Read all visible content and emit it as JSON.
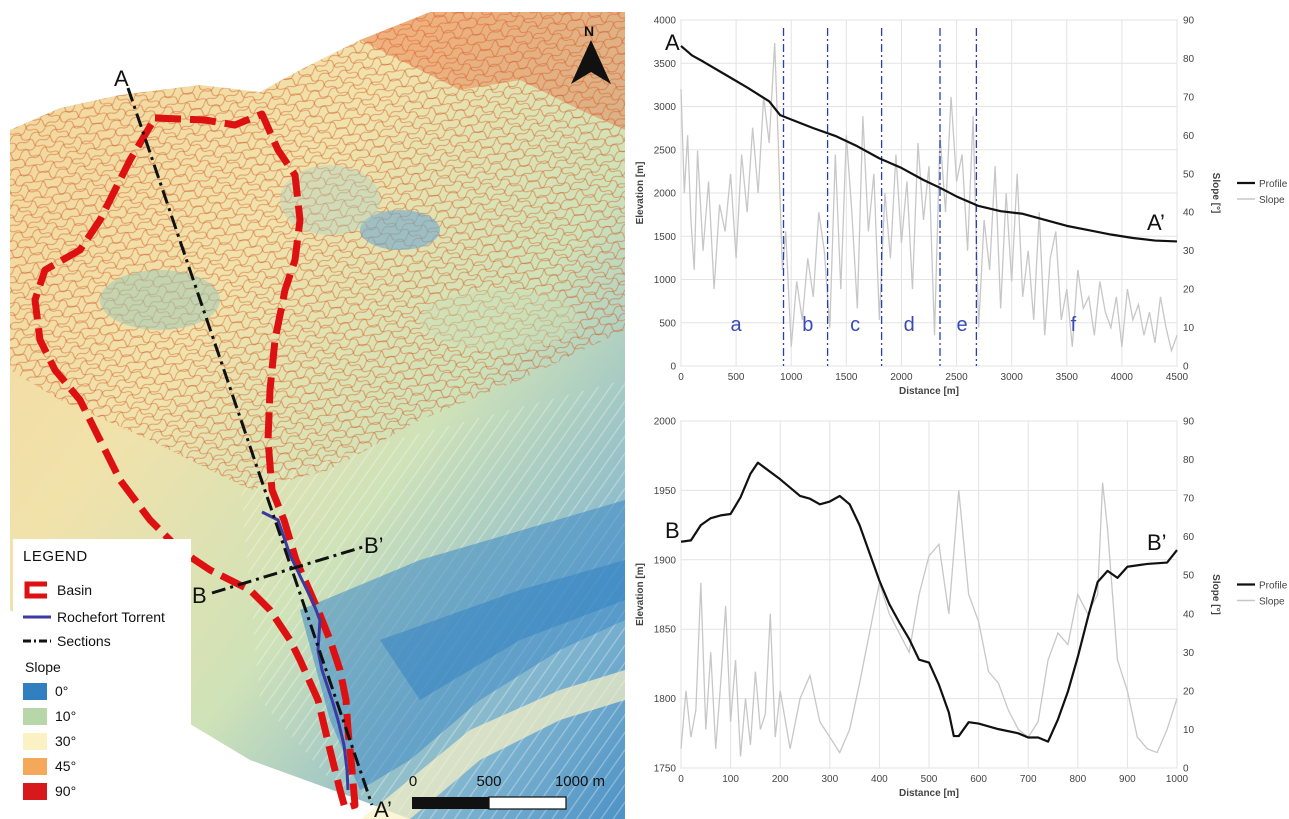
{
  "map": {
    "north_label": "N",
    "section_a_start": "A",
    "section_a_end": "A’",
    "section_b_start": "B",
    "section_b_end": "B’",
    "scale": {
      "labels": [
        "0",
        "500",
        "1000 m"
      ]
    },
    "colors": {
      "basin": "#dd1111",
      "torrent": "#3a3aa0",
      "sections": "#111111"
    }
  },
  "legend": {
    "title": "LEGEND",
    "items": [
      {
        "label": "Basin",
        "kind": "basin"
      },
      {
        "label": "Rochefort Torrent",
        "kind": "torrent"
      },
      {
        "label": "Sections",
        "kind": "sections"
      }
    ],
    "slope_title": "Slope",
    "slope_classes": [
      {
        "label": "0°",
        "color": "#2f7fc1"
      },
      {
        "label": "10°",
        "color": "#b7d7a8"
      },
      {
        "label": "30°",
        "color": "#fbf2c4"
      },
      {
        "label": "45°",
        "color": "#f4a95a"
      },
      {
        "label": "90°",
        "color": "#d7191c"
      }
    ]
  },
  "chart_data": [
    {
      "type": "line",
      "xlabel": "Distance [m]",
      "ylabel": "Elevation [m]",
      "y2label": "Slope [°]",
      "xlim": [
        0,
        4500
      ],
      "ylim": [
        0,
        4000
      ],
      "y2lim": [
        0,
        90
      ],
      "xticks": [
        0,
        500,
        1000,
        1500,
        2000,
        2500,
        3000,
        3500,
        4000,
        4500
      ],
      "yticks": [
        0,
        500,
        1000,
        1500,
        2000,
        2500,
        3000,
        3500,
        4000
      ],
      "y2ticks": [
        0,
        10,
        20,
        30,
        40,
        50,
        60,
        70,
        80,
        90
      ],
      "start_label": "A",
      "end_label": "A’",
      "legend": [
        "Profile",
        "Slope"
      ],
      "legend_position": "right",
      "grid": true,
      "profile": {
        "x": [
          0,
          100,
          200,
          400,
          600,
          800,
          900,
          1000,
          1200,
          1400,
          1600,
          1800,
          2000,
          2200,
          2350,
          2500,
          2700,
          2900,
          3100,
          3300,
          3500,
          3700,
          3900,
          4100,
          4300,
          4500
        ],
        "y": [
          3700,
          3590,
          3520,
          3370,
          3220,
          3060,
          2900,
          2850,
          2750,
          2660,
          2540,
          2400,
          2290,
          2150,
          2060,
          1960,
          1850,
          1790,
          1760,
          1690,
          1620,
          1570,
          1520,
          1480,
          1450,
          1440
        ]
      },
      "slope": {
        "x": [
          0,
          30,
          60,
          90,
          120,
          150,
          200,
          250,
          300,
          350,
          400,
          450,
          500,
          550,
          600,
          650,
          700,
          750,
          800,
          850,
          880,
          920,
          950,
          1000,
          1050,
          1100,
          1150,
          1200,
          1250,
          1300,
          1350,
          1400,
          1450,
          1500,
          1550,
          1600,
          1650,
          1700,
          1750,
          1800,
          1850,
          1900,
          1950,
          2000,
          2050,
          2100,
          2150,
          2200,
          2250,
          2300,
          2350,
          2400,
          2450,
          2500,
          2550,
          2600,
          2650,
          2700,
          2750,
          2800,
          2850,
          2900,
          2950,
          3000,
          3050,
          3100,
          3150,
          3200,
          3250,
          3300,
          3350,
          3400,
          3450,
          3500,
          3550,
          3600,
          3650,
          3700,
          3750,
          3800,
          3850,
          3900,
          3950,
          4000,
          4050,
          4100,
          4150,
          4200,
          4250,
          4300,
          4350,
          4400,
          4450,
          4500
        ],
        "y": [
          72,
          45,
          60,
          38,
          25,
          56,
          30,
          48,
          20,
          42,
          35,
          50,
          28,
          55,
          40,
          62,
          45,
          70,
          58,
          84,
          60,
          25,
          35,
          5,
          22,
          12,
          28,
          18,
          40,
          30,
          10,
          55,
          20,
          60,
          40,
          15,
          65,
          35,
          50,
          12,
          45,
          28,
          55,
          32,
          48,
          20,
          58,
          38,
          52,
          8,
          60,
          40,
          70,
          48,
          55,
          30,
          65,
          10,
          38,
          25,
          52,
          15,
          45,
          22,
          50,
          18,
          30,
          12,
          40,
          8,
          28,
          35,
          12,
          20,
          5,
          25,
          15,
          18,
          8,
          22,
          14,
          10,
          18,
          5,
          20,
          12,
          16,
          8,
          14,
          6,
          18,
          10,
          4,
          8
        ]
      },
      "section_dividers_x": [
        930,
        1330,
        1820,
        2350,
        2680
      ],
      "zones": [
        {
          "label": "a",
          "x": 500
        },
        {
          "label": "b",
          "x": 1150
        },
        {
          "label": "c",
          "x": 1580
        },
        {
          "label": "d",
          "x": 2070
        },
        {
          "label": "e",
          "x": 2550
        },
        {
          "label": "f",
          "x": 3560
        }
      ]
    },
    {
      "type": "line",
      "xlabel": "Distance [m]",
      "ylabel": "Elevation [m]",
      "y2label": "Slope [°]",
      "xlim": [
        0,
        1000
      ],
      "ylim": [
        1750,
        2000
      ],
      "y2lim": [
        0,
        90
      ],
      "xticks": [
        0,
        100,
        200,
        300,
        400,
        500,
        600,
        700,
        800,
        900,
        1000
      ],
      "yticks": [
        1750,
        1800,
        1850,
        1900,
        1950,
        2000
      ],
      "y2ticks": [
        0,
        10,
        20,
        30,
        40,
        50,
        60,
        70,
        80,
        90
      ],
      "start_label": "B",
      "end_label": "B’",
      "legend": [
        "Profile",
        "Slope"
      ],
      "legend_position": "right",
      "grid": true,
      "profile": {
        "x": [
          0,
          20,
          40,
          60,
          80,
          100,
          120,
          140,
          155,
          170,
          200,
          240,
          260,
          280,
          300,
          320,
          340,
          360,
          380,
          400,
          420,
          440,
          460,
          480,
          500,
          520,
          540,
          550,
          560,
          580,
          600,
          640,
          680,
          700,
          720,
          740,
          760,
          780,
          800,
          820,
          840,
          860,
          880,
          900,
          940,
          980,
          1000
        ],
        "y": [
          1913,
          1914,
          1925,
          1930,
          1932,
          1933,
          1945,
          1962,
          1970,
          1966,
          1958,
          1946,
          1944,
          1940,
          1942,
          1946,
          1940,
          1925,
          1905,
          1885,
          1868,
          1855,
          1843,
          1828,
          1826,
          1810,
          1790,
          1773,
          1773,
          1783,
          1782,
          1778,
          1775,
          1772,
          1772,
          1769,
          1785,
          1805,
          1830,
          1858,
          1884,
          1892,
          1887,
          1895,
          1897,
          1898,
          1907
        ]
      },
      "slope": {
        "x": [
          0,
          10,
          20,
          30,
          40,
          50,
          60,
          70,
          80,
          90,
          100,
          110,
          120,
          130,
          140,
          150,
          160,
          170,
          180,
          190,
          200,
          220,
          240,
          260,
          280,
          300,
          320,
          340,
          360,
          380,
          400,
          420,
          440,
          460,
          480,
          500,
          520,
          540,
          560,
          580,
          600,
          620,
          640,
          660,
          680,
          700,
          720,
          740,
          760,
          780,
          800,
          820,
          840,
          850,
          860,
          880,
          900,
          920,
          940,
          960,
          980,
          1000
        ],
        "y": [
          5,
          20,
          8,
          15,
          48,
          10,
          30,
          5,
          22,
          42,
          12,
          28,
          3,
          18,
          6,
          25,
          10,
          14,
          40,
          8,
          20,
          5,
          18,
          24,
          12,
          8,
          4,
          10,
          22,
          35,
          48,
          40,
          35,
          30,
          45,
          55,
          58,
          40,
          72,
          45,
          38,
          25,
          22,
          15,
          10,
          8,
          12,
          28,
          35,
          32,
          45,
          40,
          45,
          74,
          62,
          28,
          20,
          8,
          5,
          4,
          10,
          18
        ]
      }
    }
  ]
}
